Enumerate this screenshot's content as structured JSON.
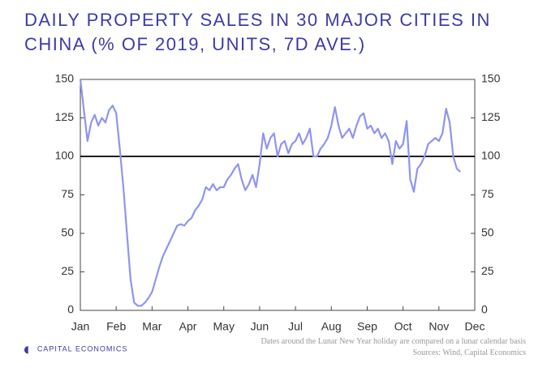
{
  "chart_data": {
    "type": "line",
    "title": "DAILY PROPERTY SALES IN 30 MAJOR CITIES IN CHINA (% OF 2019, UNITS, 7D AVE.)",
    "notes": "Dates around the Lunar New Year holiday are compared on a lunar calendar basis",
    "source": "Sources: Wind, Capital Economics",
    "brand": "CAPITAL ECONOMICS",
    "xlim": [
      0,
      11
    ],
    "xticks": [
      {
        "value": 0,
        "label": "Jan"
      },
      {
        "value": 1,
        "label": "Feb"
      },
      {
        "value": 2,
        "label": "Mar"
      },
      {
        "value": 3,
        "label": "Apr"
      },
      {
        "value": 4,
        "label": "May"
      },
      {
        "value": 5,
        "label": "Jun"
      },
      {
        "value": 6,
        "label": "Jul"
      },
      {
        "value": 7,
        "label": "Aug"
      },
      {
        "value": 8,
        "label": "Sep"
      },
      {
        "value": 9,
        "label": "Oct"
      },
      {
        "value": 10,
        "label": "Nov"
      },
      {
        "value": 11,
        "label": "Dec"
      }
    ],
    "ylim": [
      0,
      150
    ],
    "yticks": [
      0,
      25,
      50,
      75,
      100,
      125,
      150
    ],
    "y2lim": [
      0,
      150
    ],
    "y2ticks": [
      0,
      25,
      50,
      75,
      100,
      125,
      150
    ],
    "reference_line": 100,
    "x": [
      0,
      0.1,
      0.2,
      0.3,
      0.4,
      0.5,
      0.6,
      0.7,
      0.8,
      0.9,
      1.0,
      1.1,
      1.2,
      1.3,
      1.4,
      1.5,
      1.6,
      1.7,
      1.8,
      1.9,
      2.0,
      2.1,
      2.2,
      2.3,
      2.4,
      2.5,
      2.6,
      2.7,
      2.8,
      2.9,
      3.0,
      3.1,
      3.2,
      3.3,
      3.4,
      3.5,
      3.6,
      3.7,
      3.8,
      3.9,
      4.0,
      4.1,
      4.2,
      4.3,
      4.4,
      4.5,
      4.6,
      4.7,
      4.8,
      4.9,
      5.0,
      5.1,
      5.2,
      5.3,
      5.4,
      5.5,
      5.6,
      5.7,
      5.8,
      5.9,
      6.0,
      6.1,
      6.2,
      6.3,
      6.4,
      6.5,
      6.6,
      6.7,
      6.8,
      6.9,
      7.0,
      7.1,
      7.2,
      7.3,
      7.4,
      7.5,
      7.6,
      7.7,
      7.8,
      7.9,
      8.0,
      8.1,
      8.2,
      8.3,
      8.4,
      8.5,
      8.6,
      8.7,
      8.8,
      8.9,
      9.0,
      9.1,
      9.2,
      9.3,
      9.4,
      9.5,
      9.6,
      9.7,
      9.8,
      9.9,
      10.0,
      10.1,
      10.2,
      10.3,
      10.4,
      10.5,
      10.6
    ],
    "series": [
      {
        "name": "Sales",
        "color": "#8f94f2",
        "values": [
          150,
          130,
          110,
          122,
          127,
          120,
          125,
          122,
          130,
          133,
          128,
          105,
          80,
          50,
          20,
          5,
          3,
          3,
          5,
          8,
          12,
          20,
          28,
          35,
          40,
          45,
          50,
          55,
          56,
          55,
          58,
          60,
          65,
          68,
          72,
          80,
          78,
          82,
          78,
          80,
          80,
          85,
          88,
          92,
          95,
          85,
          78,
          82,
          88,
          80,
          95,
          115,
          105,
          112,
          115,
          100,
          108,
          110,
          102,
          108,
          110,
          115,
          108,
          112,
          118,
          100,
          100,
          105,
          108,
          112,
          120,
          132,
          120,
          112,
          115,
          118,
          112,
          120,
          126,
          128,
          118,
          120,
          115,
          118,
          112,
          115,
          110,
          95,
          110,
          105,
          108,
          123,
          85,
          77,
          92,
          95,
          100,
          108,
          110,
          112,
          110,
          115,
          131,
          122,
          100,
          92,
          90
        ]
      }
    ]
  }
}
